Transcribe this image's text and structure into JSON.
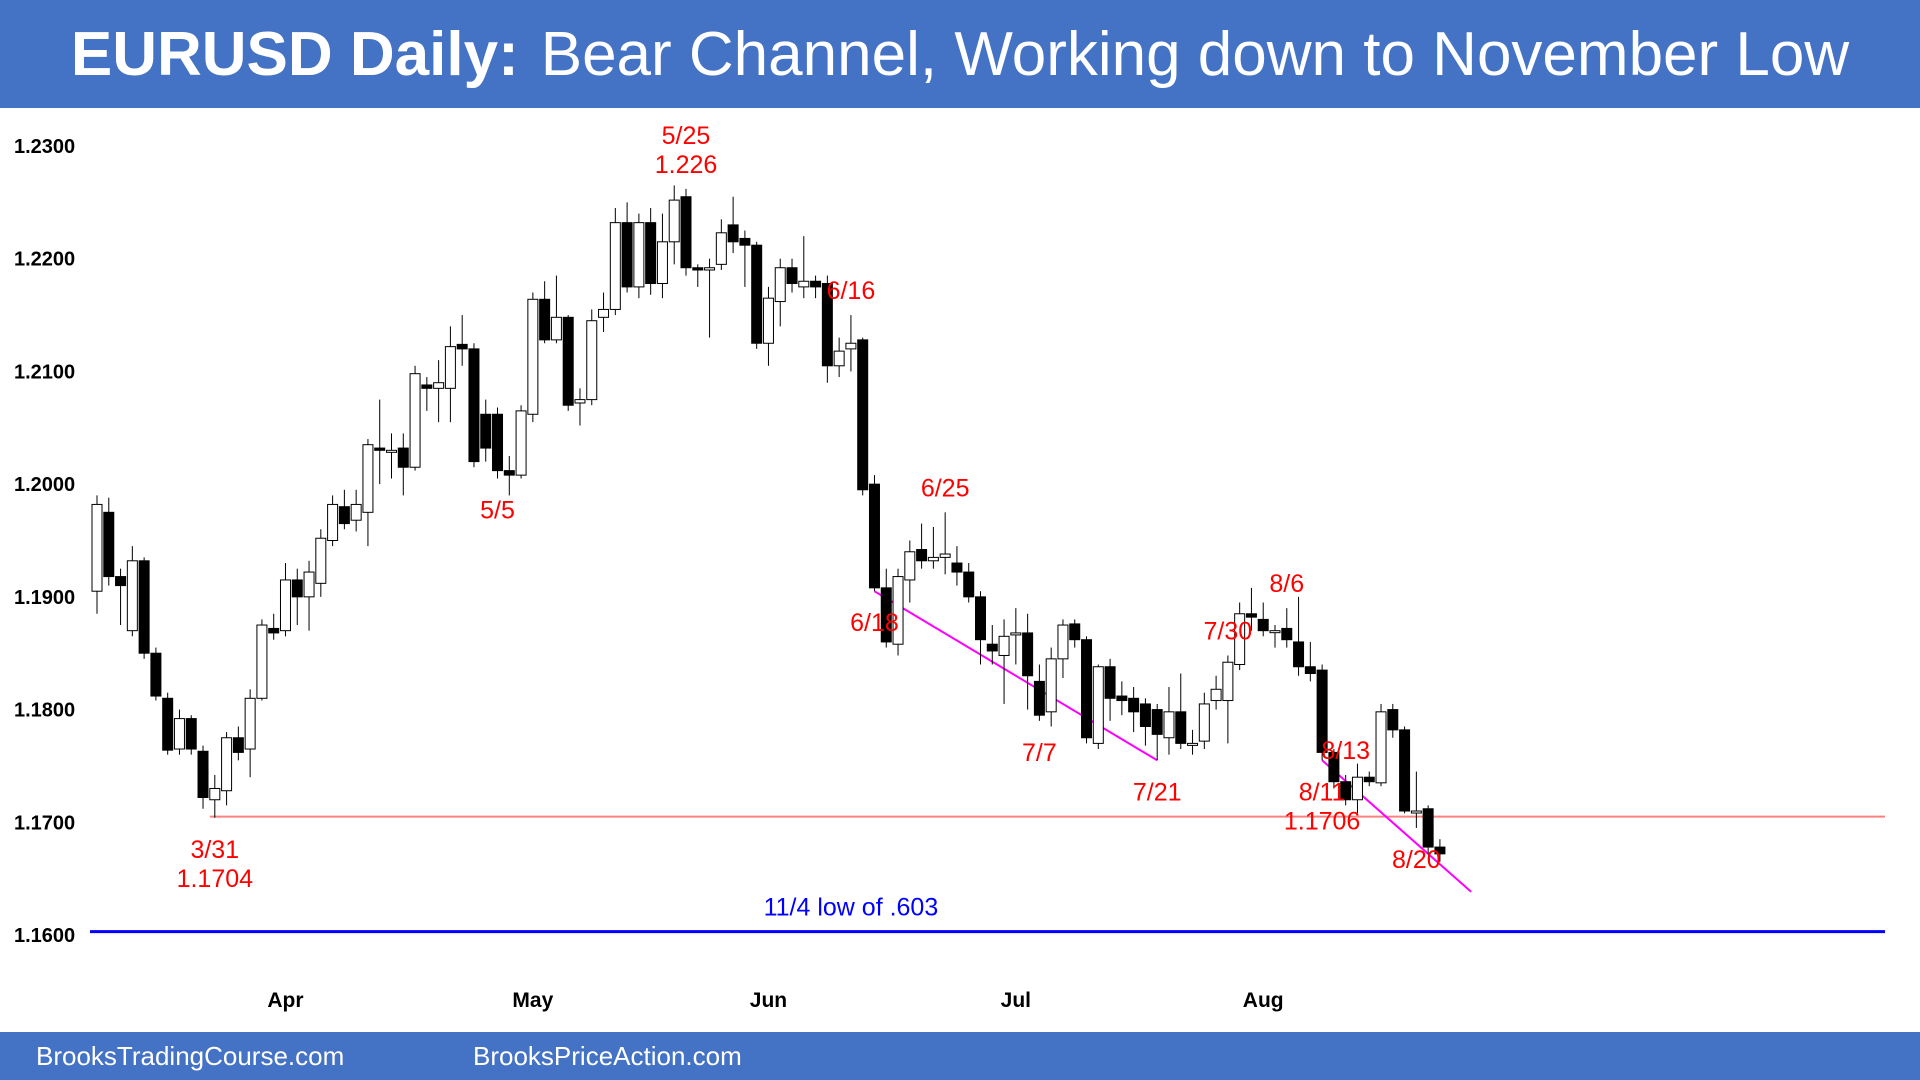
{
  "title": {
    "bold": "EURUSD Daily:",
    "rest": "Bear Channel, Working down to November Low"
  },
  "footer": {
    "left": "BrooksTradingCourse.com",
    "right": "BrooksPriceAction.com"
  },
  "colors": {
    "banner": "#4472C4",
    "annotation": "#FF0000",
    "trendline": "#FF00FF",
    "support": "#FF8080",
    "novLow": "#0000FF",
    "bear": "#000000",
    "bull": "#FFFFFF"
  },
  "chart_data": {
    "type": "candlestick",
    "ylim": [
      1.1555,
      1.2335
    ],
    "yticks": [
      {
        "value": 1.23,
        "label": "1.2300"
      },
      {
        "value": 1.22,
        "label": "1.2200"
      },
      {
        "value": 1.21,
        "label": "1.2100"
      },
      {
        "value": 1.2,
        "label": "1.2000"
      },
      {
        "value": 1.19,
        "label": "1.1900"
      },
      {
        "value": 1.18,
        "label": "1.1800"
      },
      {
        "value": 1.17,
        "label": "1.1700"
      },
      {
        "value": 1.16,
        "label": "1.1600"
      }
    ],
    "xticks": [
      {
        "index": 16,
        "label": "Apr"
      },
      {
        "index": 37,
        "label": "May"
      },
      {
        "index": 57,
        "label": "Jun"
      },
      {
        "index": 78,
        "label": "Jul"
      },
      {
        "index": 99,
        "label": "Aug"
      }
    ],
    "candles": [
      [
        1.1905,
        1.1982,
        1.1885,
        1.199
      ],
      [
        1.1975,
        1.1918,
        1.191,
        1.1988
      ],
      [
        1.1918,
        1.191,
        1.1875,
        1.1925
      ],
      [
        1.187,
        1.1932,
        1.1865,
        1.1945
      ],
      [
        1.1932,
        1.185,
        1.1845,
        1.1935
      ],
      [
        1.185,
        1.1812,
        1.1808,
        1.1855
      ],
      [
        1.181,
        1.1764,
        1.176,
        1.1815
      ],
      [
        1.1765,
        1.1792,
        1.176,
        1.18
      ],
      [
        1.1792,
        1.1765,
        1.176,
        1.1795
      ],
      [
        1.1763,
        1.1722,
        1.1712,
        1.1768
      ],
      [
        1.172,
        1.173,
        1.1704,
        1.1742
      ],
      [
        1.1728,
        1.1775,
        1.1715,
        1.178
      ],
      [
        1.1775,
        1.1762,
        1.1755,
        1.1785
      ],
      [
        1.1765,
        1.181,
        1.174,
        1.1818
      ],
      [
        1.181,
        1.1875,
        1.1808,
        1.188
      ],
      [
        1.1872,
        1.1868,
        1.1862,
        1.1885
      ],
      [
        1.187,
        1.1915,
        1.1865,
        1.193
      ],
      [
        1.1915,
        1.19,
        1.1875,
        1.1925
      ],
      [
        1.19,
        1.1922,
        1.187,
        1.1932
      ],
      [
        1.1912,
        1.1952,
        1.19,
        1.196
      ],
      [
        1.195,
        1.1982,
        1.1945,
        1.199
      ],
      [
        1.198,
        1.1965,
        1.196,
        1.1995
      ],
      [
        1.1968,
        1.1982,
        1.1958,
        1.1995
      ],
      [
        1.1975,
        1.2035,
        1.1945,
        1.204
      ],
      [
        1.2032,
        1.203,
        1.2,
        1.2075
      ],
      [
        1.203,
        1.203,
        1.2005,
        1.2045
      ],
      [
        1.2032,
        1.2015,
        1.199,
        1.2045
      ],
      [
        1.2015,
        1.2098,
        1.2012,
        1.2105
      ],
      [
        1.2088,
        1.2085,
        1.2065,
        1.2095
      ],
      [
        1.2085,
        1.209,
        1.2055,
        1.211
      ],
      [
        1.2085,
        1.2122,
        1.2055,
        1.214
      ],
      [
        1.2124,
        1.212,
        1.2105,
        1.215
      ],
      [
        1.212,
        1.202,
        1.2015,
        1.2125
      ],
      [
        1.2062,
        1.2032,
        1.202,
        1.2075
      ],
      [
        1.2062,
        1.2012,
        1.2005,
        1.2068
      ],
      [
        1.2012,
        1.2008,
        1.199,
        1.2025
      ],
      [
        1.2008,
        1.2065,
        1.2005,
        1.207
      ],
      [
        1.2062,
        1.2164,
        1.2055,
        1.217
      ],
      [
        1.2164,
        1.2128,
        1.2125,
        1.218
      ],
      [
        1.2128,
        1.2148,
        1.2125,
        1.2185
      ],
      [
        1.2148,
        1.207,
        1.2065,
        1.215
      ],
      [
        1.2072,
        1.2075,
        1.2052,
        1.2085
      ],
      [
        1.2075,
        1.2145,
        1.207,
        1.2155
      ],
      [
        1.2148,
        1.2155,
        1.2135,
        1.217
      ],
      [
        1.2155,
        1.2232,
        1.215,
        1.2245
      ],
      [
        1.2232,
        1.2175,
        1.217,
        1.225
      ],
      [
        1.2175,
        1.2232,
        1.2165,
        1.224
      ],
      [
        1.2232,
        1.2178,
        1.2168,
        1.2245
      ],
      [
        1.2178,
        1.2215,
        1.2165,
        1.224
      ],
      [
        1.2215,
        1.2252,
        1.2195,
        1.2265
      ],
      [
        1.2255,
        1.2192,
        1.2185,
        1.2262
      ],
      [
        1.2192,
        1.219,
        1.2175,
        1.2195
      ],
      [
        1.219,
        1.2192,
        1.213,
        1.22
      ],
      [
        1.2195,
        1.2223,
        1.219,
        1.2235
      ],
      [
        1.223,
        1.2215,
        1.2205,
        1.2255
      ],
      [
        1.2218,
        1.2212,
        1.2175,
        1.2225
      ],
      [
        1.2212,
        1.2125,
        1.212,
        1.2215
      ],
      [
        1.2125,
        1.2165,
        1.2105,
        1.2175
      ],
      [
        1.2162,
        1.2192,
        1.214,
        1.22
      ],
      [
        1.2192,
        1.2178,
        1.217,
        1.22
      ],
      [
        1.2175,
        1.218,
        1.2165,
        1.222
      ],
      [
        1.218,
        1.2175,
        1.2165,
        1.2185
      ],
      [
        1.2178,
        1.2105,
        1.209,
        1.2185
      ],
      [
        1.2105,
        1.2118,
        1.2095,
        1.213
      ],
      [
        1.212,
        1.2125,
        1.21,
        1.215
      ],
      [
        1.2128,
        1.1995,
        1.199,
        1.213
      ],
      [
        1.2,
        1.1908,
        1.1905,
        1.2008
      ],
      [
        1.1908,
        1.186,
        1.1855,
        1.1925
      ],
      [
        1.1858,
        1.1918,
        1.1848,
        1.1925
      ],
      [
        1.1915,
        1.194,
        1.1895,
        1.195
      ],
      [
        1.1942,
        1.1932,
        1.1925,
        1.1965
      ],
      [
        1.1932,
        1.1935,
        1.1925,
        1.1962
      ],
      [
        1.1935,
        1.1938,
        1.192,
        1.1975
      ],
      [
        1.193,
        1.1922,
        1.191,
        1.1945
      ],
      [
        1.1922,
        1.19,
        1.1895,
        1.193
      ],
      [
        1.19,
        1.1862,
        1.184,
        1.1905
      ],
      [
        1.1858,
        1.1852,
        1.184,
        1.1875
      ],
      [
        1.1848,
        1.1865,
        1.1805,
        1.188
      ],
      [
        1.1868,
        1.1868,
        1.184,
        1.189
      ],
      [
        1.1868,
        1.183,
        1.18,
        1.1885
      ],
      [
        1.1825,
        1.1795,
        1.179,
        1.184
      ],
      [
        1.1798,
        1.1845,
        1.1785,
        1.1855
      ],
      [
        1.1845,
        1.1875,
        1.1828,
        1.188
      ],
      [
        1.1876,
        1.1862,
        1.1855,
        1.188
      ],
      [
        1.1862,
        1.1775,
        1.177,
        1.1865
      ],
      [
        1.177,
        1.1838,
        1.1765,
        1.184
      ],
      [
        1.1838,
        1.181,
        1.179,
        1.1845
      ],
      [
        1.1812,
        1.1808,
        1.1795,
        1.1825
      ],
      [
        1.181,
        1.1798,
        1.178,
        1.182
      ],
      [
        1.1805,
        1.1785,
        1.1768,
        1.181
      ],
      [
        1.18,
        1.1778,
        1.1755,
        1.1805
      ],
      [
        1.1775,
        1.1798,
        1.176,
        1.182
      ],
      [
        1.1798,
        1.177,
        1.1765,
        1.1832
      ],
      [
        1.177,
        1.177,
        1.176,
        1.1782
      ],
      [
        1.1772,
        1.1805,
        1.1765,
        1.1815
      ],
      [
        1.1808,
        1.1818,
        1.18,
        1.183
      ],
      [
        1.1808,
        1.1842,
        1.177,
        1.1848
      ],
      [
        1.184,
        1.1885,
        1.1835,
        1.1895
      ],
      [
        1.1885,
        1.1882,
        1.187,
        1.1908
      ],
      [
        1.188,
        1.187,
        1.1865,
        1.1895
      ],
      [
        1.187,
        1.187,
        1.1855,
        1.1875
      ],
      [
        1.1872,
        1.1862,
        1.1855,
        1.189
      ],
      [
        1.186,
        1.1838,
        1.183,
        1.19
      ],
      [
        1.1838,
        1.1832,
        1.1825,
        1.186
      ],
      [
        1.1835,
        1.1762,
        1.1755,
        1.184
      ],
      [
        1.1762,
        1.1736,
        1.173,
        1.1765
      ],
      [
        1.1736,
        1.172,
        1.1715,
        1.1742
      ],
      [
        1.172,
        1.174,
        1.1708,
        1.1752
      ],
      [
        1.174,
        1.1736,
        1.1732,
        1.1745
      ],
      [
        1.1735,
        1.1798,
        1.1732,
        1.1805
      ],
      [
        1.18,
        1.1782,
        1.1775,
        1.1805
      ],
      [
        1.1782,
        1.171,
        1.1708,
        1.1785
      ],
      [
        1.171,
        1.171,
        1.1695,
        1.1745
      ],
      [
        1.1712,
        1.1678,
        1.1672,
        1.1715
      ],
      [
        1.1678,
        1.1672,
        1.1665,
        1.1685
      ]
    ],
    "lines": [
      {
        "label": "11/4 low of .603",
        "value": 1.1603,
        "kind": "support"
      },
      {
        "value": 1.1705,
        "kind": "support"
      }
    ],
    "annotations": [
      {
        "lines": [
          "5/25",
          "1.226"
        ],
        "index": 50
      },
      {
        "lines": [
          "6/16"
        ],
        "index": 64
      },
      {
        "lines": [
          "6/25"
        ],
        "index": 72
      },
      {
        "lines": [
          "5/5"
        ],
        "index": 34
      },
      {
        "lines": [
          "7/30"
        ],
        "index": 96
      },
      {
        "lines": [
          "8/6"
        ],
        "index": 101
      },
      {
        "lines": [
          "8/13"
        ],
        "index": 106
      },
      {
        "lines": [
          "6/18"
        ],
        "index": 66
      },
      {
        "lines": [
          "7/7"
        ],
        "index": 80
      },
      {
        "lines": [
          "7/21"
        ],
        "index": 90
      },
      {
        "lines": [
          "3/31",
          "1.1704"
        ],
        "index": 10
      },
      {
        "lines": [
          "8/11",
          "1.1706"
        ],
        "index": 104
      },
      {
        "lines": [
          "8/20"
        ],
        "index": 112
      }
    ]
  }
}
